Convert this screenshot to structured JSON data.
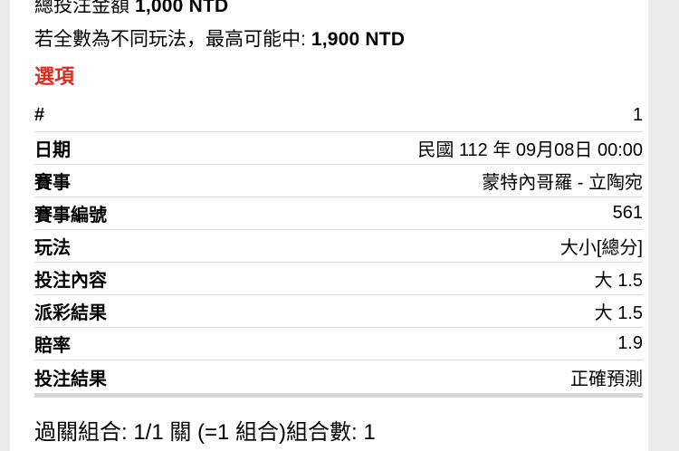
{
  "summary": {
    "total_label": "總投注金額",
    "total_value": "1,000 NTD",
    "max_win_label": "若全數為不同玩法，最高可能中:",
    "max_win_value": "1,900 NTD"
  },
  "options": {
    "heading": "選項"
  },
  "bet_table": {
    "rows": [
      {
        "label": "#",
        "value": "1"
      },
      {
        "label": "日期",
        "value": "民國 112 年 09月08日 00:00"
      },
      {
        "label": "賽事",
        "value": "蒙特內哥羅 - 立陶宛"
      },
      {
        "label": "賽事編號",
        "value": "561"
      },
      {
        "label": "玩法",
        "value": "大小[總分]"
      },
      {
        "label": "投注內容",
        "value": "大 1.5"
      },
      {
        "label": "派彩結果",
        "value": "大 1.5"
      },
      {
        "label": "賠率",
        "value": "1.9"
      },
      {
        "label": "投注結果",
        "value": "正確預測"
      }
    ]
  },
  "footer": {
    "combo_text": "過關組合: 1/1 關 (=1 組合)組合數: 1"
  },
  "colors": {
    "accent_red": "#e02a1e",
    "divider": "#dcdcdc",
    "thick_divider": "#d8d8d8",
    "page_background": "#ececec",
    "panel_background": "#ffffff"
  }
}
